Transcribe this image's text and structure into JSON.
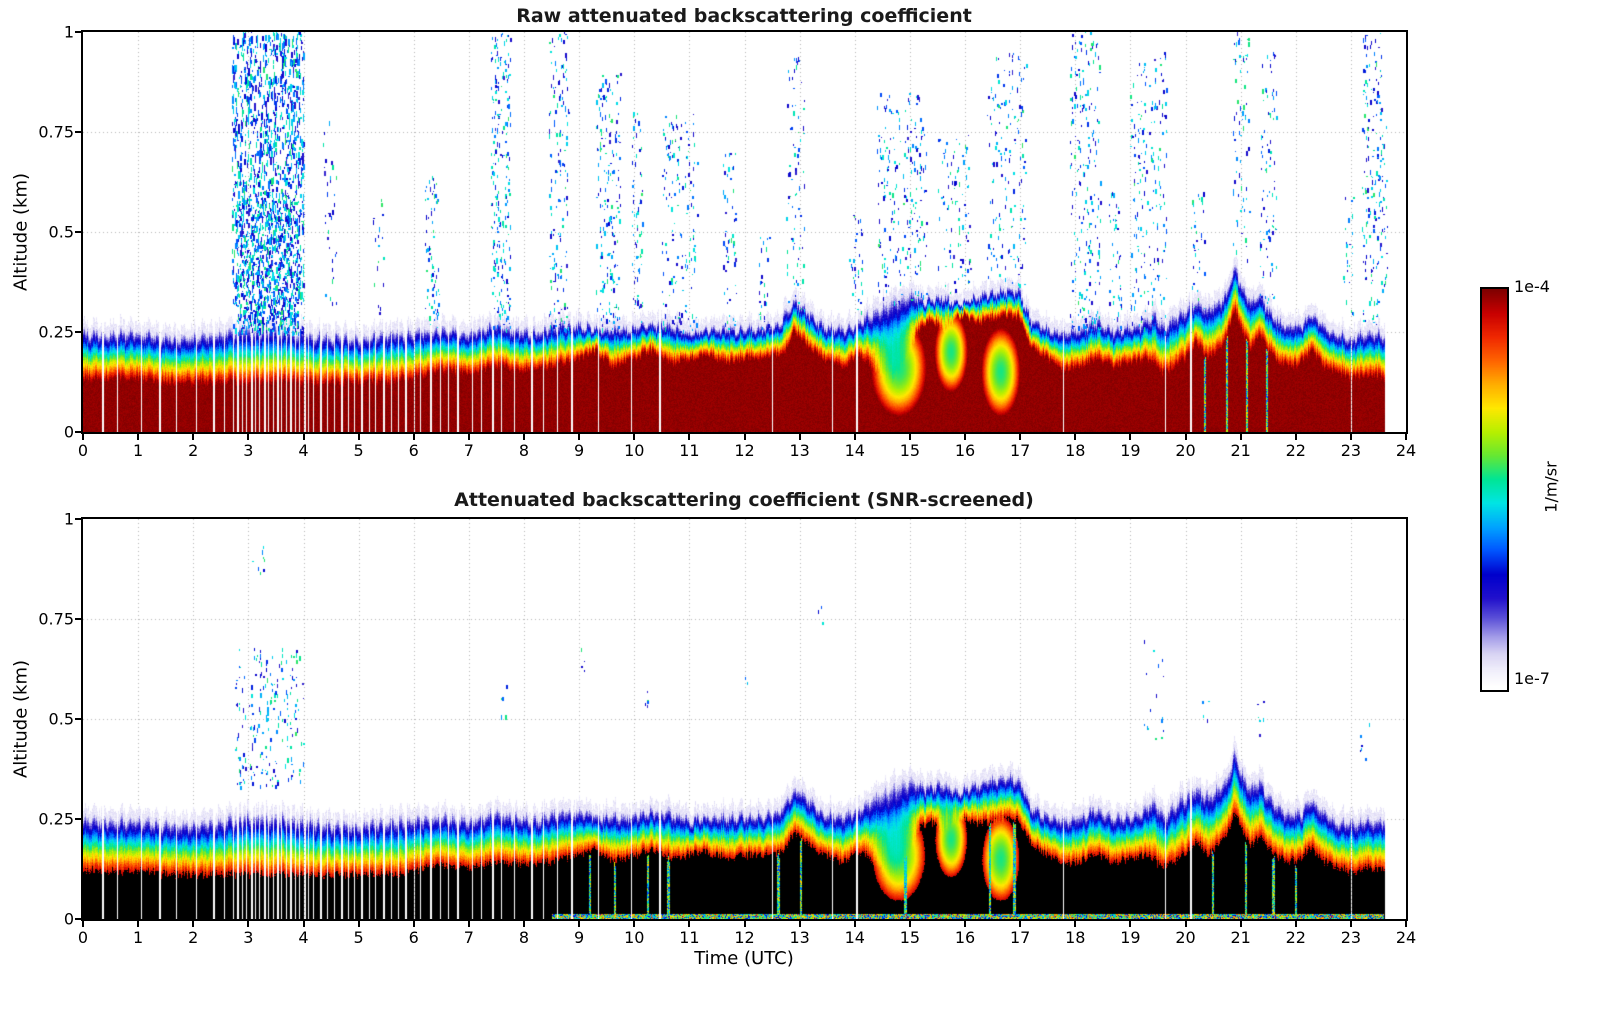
{
  "chart_data": {
    "type": "heatmap",
    "x": {
      "label": "Time (UTC)",
      "min": 0,
      "max": 24,
      "ticks": [
        0,
        1,
        2,
        3,
        4,
        5,
        6,
        7,
        8,
        9,
        10,
        11,
        12,
        13,
        14,
        15,
        16,
        17,
        18,
        19,
        20,
        21,
        22,
        23,
        24
      ]
    },
    "y": {
      "label": "Altitude (km)",
      "min": 0,
      "max": 1,
      "ticks": [
        {
          "value": 0,
          "label": "0"
        },
        {
          "value": 0.25,
          "label": "0.25"
        },
        {
          "value": 0.5,
          "label": "0.5"
        },
        {
          "value": 0.75,
          "label": "0.75"
        },
        {
          "value": 1,
          "label": "1"
        }
      ]
    },
    "value_scale": {
      "type": "log",
      "min": 1e-07,
      "max": 0.0001
    },
    "colorbar": {
      "max_label": "1e-4",
      "min_label": "1e-7",
      "unit": "1/m/sr",
      "stops": [
        [
          0.0,
          "#ffffff"
        ],
        [
          0.04,
          "#f0eefb"
        ],
        [
          0.08,
          "#d9d4f4"
        ],
        [
          0.12,
          "#a7a0ea"
        ],
        [
          0.17,
          "#5b50d8"
        ],
        [
          0.22,
          "#2211cc"
        ],
        [
          0.28,
          "#0000cd"
        ],
        [
          0.34,
          "#0055ff"
        ],
        [
          0.4,
          "#00a4ff"
        ],
        [
          0.46,
          "#00e5e5"
        ],
        [
          0.52,
          "#00e596"
        ],
        [
          0.58,
          "#66e833"
        ],
        [
          0.64,
          "#b8f000"
        ],
        [
          0.7,
          "#ffe800"
        ],
        [
          0.76,
          "#ffae00"
        ],
        [
          0.82,
          "#ff6400"
        ],
        [
          0.88,
          "#f02800"
        ],
        [
          0.94,
          "#c80000"
        ],
        [
          1.0,
          "#7f0000"
        ]
      ]
    },
    "data_end_time": 23.62,
    "layer_top_km": [
      [
        0,
        0.25
      ],
      [
        0.5,
        0.25
      ],
      [
        1,
        0.25
      ],
      [
        1.5,
        0.24
      ],
      [
        2,
        0.24
      ],
      [
        2.5,
        0.25
      ],
      [
        3,
        0.26
      ],
      [
        3.5,
        0.26
      ],
      [
        4,
        0.25
      ],
      [
        4.5,
        0.24
      ],
      [
        5,
        0.24
      ],
      [
        5.5,
        0.25
      ],
      [
        6,
        0.25
      ],
      [
        6.5,
        0.26
      ],
      [
        7,
        0.25
      ],
      [
        7.5,
        0.27
      ],
      [
        7.8,
        0.26
      ],
      [
        8.2,
        0.25
      ],
      [
        8.6,
        0.27
      ],
      [
        9,
        0.27
      ],
      [
        9.4,
        0.26
      ],
      [
        9.8,
        0.26
      ],
      [
        10.2,
        0.27
      ],
      [
        10.6,
        0.27
      ],
      [
        11,
        0.25
      ],
      [
        11.4,
        0.26
      ],
      [
        11.8,
        0.26
      ],
      [
        12.2,
        0.26
      ],
      [
        12.6,
        0.27
      ],
      [
        12.9,
        0.33
      ],
      [
        13.1,
        0.31
      ],
      [
        13.4,
        0.27
      ],
      [
        13.8,
        0.26
      ],
      [
        14.1,
        0.28
      ],
      [
        14.4,
        0.31
      ],
      [
        14.7,
        0.33
      ],
      [
        15,
        0.35
      ],
      [
        15.3,
        0.33
      ],
      [
        15.6,
        0.34
      ],
      [
        15.9,
        0.32
      ],
      [
        16.2,
        0.34
      ],
      [
        16.5,
        0.35
      ],
      [
        16.8,
        0.36
      ],
      [
        17,
        0.35
      ],
      [
        17.2,
        0.28
      ],
      [
        17.5,
        0.26
      ],
      [
        17.8,
        0.25
      ],
      [
        18.1,
        0.26
      ],
      [
        18.4,
        0.28
      ],
      [
        18.6,
        0.26
      ],
      [
        18.9,
        0.26
      ],
      [
        19.2,
        0.27
      ],
      [
        19.45,
        0.3
      ],
      [
        19.6,
        0.26
      ],
      [
        19.8,
        0.29
      ],
      [
        20,
        0.31
      ],
      [
        20.2,
        0.33
      ],
      [
        20.4,
        0.31
      ],
      [
        20.6,
        0.33
      ],
      [
        20.75,
        0.35
      ],
      [
        20.9,
        0.42
      ],
      [
        21.05,
        0.36
      ],
      [
        21.2,
        0.33
      ],
      [
        21.35,
        0.35
      ],
      [
        21.5,
        0.31
      ],
      [
        21.7,
        0.28
      ],
      [
        21.9,
        0.27
      ],
      [
        22.1,
        0.27
      ],
      [
        22.3,
        0.3
      ],
      [
        22.5,
        0.27
      ],
      [
        22.7,
        0.25
      ],
      [
        23,
        0.24
      ],
      [
        23.3,
        0.25
      ],
      [
        23.62,
        0.25
      ]
    ],
    "saturated_top_km": [
      [
        0,
        0.13
      ],
      [
        0.5,
        0.13
      ],
      [
        1,
        0.13
      ],
      [
        1.5,
        0.12
      ],
      [
        2,
        0.12
      ],
      [
        2.5,
        0.12
      ],
      [
        3,
        0.12
      ],
      [
        3.5,
        0.12
      ],
      [
        4,
        0.12
      ],
      [
        4.5,
        0.12
      ],
      [
        5,
        0.12
      ],
      [
        5.5,
        0.12
      ],
      [
        6,
        0.13
      ],
      [
        6.5,
        0.15
      ],
      [
        7,
        0.14
      ],
      [
        7.5,
        0.16
      ],
      [
        8,
        0.15
      ],
      [
        8.5,
        0.16
      ],
      [
        9,
        0.18
      ],
      [
        9.3,
        0.2
      ],
      [
        9.6,
        0.16
      ],
      [
        10,
        0.18
      ],
      [
        10.3,
        0.2
      ],
      [
        10.7,
        0.17
      ],
      [
        11,
        0.18
      ],
      [
        11.3,
        0.19
      ],
      [
        11.7,
        0.17
      ],
      [
        12,
        0.18
      ],
      [
        12.4,
        0.18
      ],
      [
        12.7,
        0.19
      ],
      [
        12.9,
        0.25
      ],
      [
        13.1,
        0.22
      ],
      [
        13.4,
        0.18
      ],
      [
        13.8,
        0.16
      ],
      [
        14.1,
        0.19
      ],
      [
        14.4,
        0.15
      ],
      [
        14.7,
        0.12
      ],
      [
        15,
        0.2
      ],
      [
        15.2,
        0.26
      ],
      [
        15.4,
        0.28
      ],
      [
        15.6,
        0.25
      ],
      [
        15.8,
        0.28
      ],
      [
        16,
        0.29
      ],
      [
        16.2,
        0.27
      ],
      [
        16.5,
        0.28
      ],
      [
        16.8,
        0.29
      ],
      [
        17,
        0.28
      ],
      [
        17.2,
        0.21
      ],
      [
        17.5,
        0.18
      ],
      [
        17.8,
        0.15
      ],
      [
        18.1,
        0.16
      ],
      [
        18.4,
        0.18
      ],
      [
        18.7,
        0.16
      ],
      [
        19,
        0.17
      ],
      [
        19.3,
        0.18
      ],
      [
        19.6,
        0.14
      ],
      [
        19.8,
        0.16
      ],
      [
        20,
        0.18
      ],
      [
        20.2,
        0.22
      ],
      [
        20.4,
        0.18
      ],
      [
        20.6,
        0.2
      ],
      [
        20.75,
        0.24
      ],
      [
        20.9,
        0.3
      ],
      [
        21.05,
        0.24
      ],
      [
        21.2,
        0.2
      ],
      [
        21.35,
        0.24
      ],
      [
        21.5,
        0.2
      ],
      [
        21.7,
        0.17
      ],
      [
        22,
        0.16
      ],
      [
        22.3,
        0.2
      ],
      [
        22.5,
        0.16
      ],
      [
        23,
        0.13
      ],
      [
        23.3,
        0.14
      ],
      [
        23.62,
        0.13
      ]
    ],
    "gap_times": [
      0.35,
      0.62,
      1.05,
      1.38,
      1.68,
      2.05,
      2.35,
      2.56,
      2.72,
      2.8,
      2.88,
      2.96,
      3.04,
      3.12,
      3.2,
      3.28,
      3.36,
      3.44,
      3.52,
      3.6,
      3.68,
      3.76,
      3.84,
      3.92,
      4.0,
      4.08,
      4.18,
      4.3,
      4.42,
      4.55,
      4.68,
      4.8,
      4.92,
      5.05,
      5.18,
      5.3,
      5.45,
      5.58,
      5.72,
      5.85,
      6.0,
      6.12,
      6.3,
      6.48,
      6.62,
      6.78,
      7.05,
      7.22,
      7.42,
      7.58,
      7.82,
      8.12,
      8.35,
      8.6,
      8.85,
      9.35,
      9.95,
      10.45,
      12.5,
      13.58,
      14.02,
      17.78,
      19.63,
      20.08,
      23.0
    ],
    "notches": [
      {
        "t": [
          14.3,
          15.3
        ],
        "h": [
          0.04,
          0.28
        ]
      },
      {
        "t": [
          15.45,
          16.05
        ],
        "h": [
          0.1,
          0.3
        ]
      },
      {
        "t": [
          16.3,
          17.0
        ],
        "h": [
          0.04,
          0.26
        ]
      }
    ],
    "panels": [
      {
        "id": "raw",
        "title": "Raw attenuated backscattering coefficient",
        "saturated_scale": 1.0,
        "colored_streak_times": [
          20.35,
          20.75,
          21.12,
          21.48
        ],
        "speckle": [
          {
            "t": [
              2.7,
              4.0
            ],
            "h": [
              0.25,
              1.0
            ],
            "n": 1500
          },
          {
            "t": [
              2.8,
              3.9
            ],
            "h": [
              0.25,
              0.6
            ],
            "n": 600
          },
          {
            "t": [
              4.35,
              4.6
            ],
            "h": [
              0.3,
              0.8
            ],
            "n": 35
          },
          {
            "t": [
              5.25,
              5.45
            ],
            "h": [
              0.3,
              0.6
            ],
            "n": 18
          },
          {
            "t": [
              6.2,
              6.45
            ],
            "h": [
              0.25,
              0.65
            ],
            "n": 70
          },
          {
            "t": [
              7.4,
              7.75
            ],
            "h": [
              0.25,
              1.0
            ],
            "n": 240
          },
          {
            "t": [
              8.45,
              8.8
            ],
            "h": [
              0.25,
              1.0
            ],
            "n": 160
          },
          {
            "t": [
              9.3,
              9.75
            ],
            "h": [
              0.25,
              0.9
            ],
            "n": 190
          },
          {
            "t": [
              9.95,
              10.15
            ],
            "h": [
              0.25,
              0.8
            ],
            "n": 70
          },
          {
            "t": [
              10.5,
              11.15
            ],
            "h": [
              0.25,
              0.8
            ],
            "n": 160
          },
          {
            "t": [
              11.6,
              11.85
            ],
            "h": [
              0.25,
              0.7
            ],
            "n": 55
          },
          {
            "t": [
              12.25,
              12.45
            ],
            "h": [
              0.25,
              0.5
            ],
            "n": 28
          },
          {
            "t": [
              12.75,
              13.1
            ],
            "h": [
              0.3,
              0.95
            ],
            "n": 80
          },
          {
            "t": [
              13.9,
              14.15
            ],
            "h": [
              0.3,
              0.55
            ],
            "n": 35
          },
          {
            "t": [
              14.4,
              15.3
            ],
            "h": [
              0.32,
              0.85
            ],
            "n": 220
          },
          {
            "t": [
              15.5,
              16.1
            ],
            "h": [
              0.35,
              0.75
            ],
            "n": 90
          },
          {
            "t": [
              16.4,
              17.1
            ],
            "h": [
              0.36,
              0.95
            ],
            "n": 160
          },
          {
            "t": [
              17.9,
              18.45
            ],
            "h": [
              0.25,
              1.0
            ],
            "n": 220
          },
          {
            "t": [
              18.6,
              18.85
            ],
            "h": [
              0.25,
              0.6
            ],
            "n": 45
          },
          {
            "t": [
              19.0,
              19.65
            ],
            "h": [
              0.25,
              0.95
            ],
            "n": 200
          },
          {
            "t": [
              20.1,
              20.35
            ],
            "h": [
              0.3,
              0.6
            ],
            "n": 35
          },
          {
            "t": [
              20.85,
              21.15
            ],
            "h": [
              0.42,
              1.0
            ],
            "n": 70
          },
          {
            "t": [
              21.35,
              21.65
            ],
            "h": [
              0.32,
              0.95
            ],
            "n": 90
          },
          {
            "t": [
              22.85,
              23.05
            ],
            "h": [
              0.3,
              0.6
            ],
            "n": 25
          },
          {
            "t": [
              23.2,
              23.55
            ],
            "h": [
              0.25,
              1.0
            ],
            "n": 170
          },
          {
            "t": [
              23.55,
              23.65
            ],
            "h": [
              0.3,
              0.8
            ],
            "n": 30
          }
        ]
      },
      {
        "id": "screened",
        "title": "Attenuated backscattering coefficient (SNR-screened)",
        "saturated_color": "#000000",
        "saturated_scale": 0.85,
        "surface_noise": {
          "t": [
            8.5,
            23.6
          ]
        },
        "colored_streak_times": [
          9.2,
          9.65,
          10.25,
          10.62,
          12.62,
          13.02,
          14.92,
          16.45,
          16.9,
          20.5,
          21.1,
          21.6,
          22.0
        ],
        "speckle": [
          {
            "t": [
              2.75,
              4.0
            ],
            "h": [
              0.33,
              0.68
            ],
            "n": 200
          },
          {
            "t": [
              2.9,
              3.3
            ],
            "h": [
              0.85,
              1.0
            ],
            "n": 8
          },
          {
            "t": [
              7.55,
              7.68
            ],
            "h": [
              0.5,
              0.62
            ],
            "n": 5
          },
          {
            "t": [
              9.0,
              9.12
            ],
            "h": [
              0.6,
              0.68
            ],
            "n": 4
          },
          {
            "t": [
              10.15,
              10.3
            ],
            "h": [
              0.5,
              0.6
            ],
            "n": 5
          },
          {
            "t": [
              12.0,
              12.1
            ],
            "h": [
              0.55,
              0.62
            ],
            "n": 3
          },
          {
            "t": [
              13.3,
              13.42
            ],
            "h": [
              0.74,
              0.8
            ],
            "n": 3
          },
          {
            "t": [
              19.25,
              19.6
            ],
            "h": [
              0.45,
              0.7
            ],
            "n": 16
          },
          {
            "t": [
              20.3,
              20.42
            ],
            "h": [
              0.5,
              0.56
            ],
            "n": 4
          },
          {
            "t": [
              21.3,
              21.48
            ],
            "h": [
              0.45,
              0.55
            ],
            "n": 6
          },
          {
            "t": [
              23.15,
              23.35
            ],
            "h": [
              0.4,
              0.52
            ],
            "n": 6
          }
        ]
      }
    ]
  }
}
